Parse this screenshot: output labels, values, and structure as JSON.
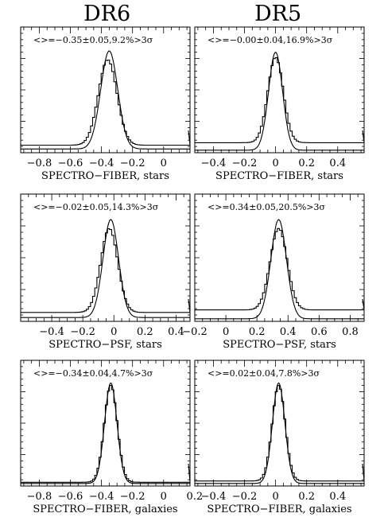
{
  "column_titles": [
    "DR6",
    "DR5"
  ],
  "chart_data": [
    {
      "type": "line",
      "panel": "DR6 top",
      "annotation": "<>=−0.35±0.05,9.2%>3σ",
      "xlabel": "SPECTRO−FIBER, stars",
      "xlim": [
        -0.92,
        0.17
      ],
      "ticks": [
        -0.8,
        -0.6,
        -0.4,
        -0.2,
        0
      ],
      "tick_labels": [
        "−0.8",
        "−0.6",
        "−0.4",
        "−0.2",
        "0"
      ],
      "series": [
        {
          "style": "smooth",
          "center": -0.35,
          "sigma": 0.055,
          "peak": 0.81,
          "tail": 0.03
        },
        {
          "style": "histogram",
          "center": -0.36,
          "sigma": 0.06,
          "peak": 0.74,
          "tail": 0.06
        }
      ]
    },
    {
      "type": "line",
      "panel": "DR5 top",
      "annotation": "<>=−0.00±0.04,16.9%>3σ",
      "xlabel": "SPECTRO−FIBER, stars",
      "xlim": [
        -0.52,
        0.57
      ],
      "ticks": [
        -0.4,
        -0.2,
        0,
        0.2,
        0.4
      ],
      "tick_labels": [
        "−0.4",
        "−0.2",
        "0",
        "0.2",
        "0.4"
      ],
      "series": [
        {
          "style": "smooth",
          "center": 0.0,
          "sigma": 0.045,
          "peak": 0.8,
          "tail": 0.02
        },
        {
          "style": "histogram",
          "center": 0.0,
          "sigma": 0.05,
          "peak": 0.76,
          "tail": 0.08
        }
      ]
    },
    {
      "type": "line",
      "panel": "DR6 middle",
      "annotation": "<>=−0.02±0.05,14.3%>3σ",
      "xlabel": "SPECTRO−PSF, stars",
      "xlim": [
        -0.6,
        0.49
      ],
      "ticks": [
        -0.4,
        -0.2,
        0,
        0.2,
        0.4
      ],
      "tick_labels": [
        "−0.4",
        "−0.2",
        "0",
        "0.2",
        "0.4"
      ],
      "series": [
        {
          "style": "smooth",
          "center": -0.02,
          "sigma": 0.05,
          "peak": 0.8,
          "tail": 0.03
        },
        {
          "style": "histogram",
          "center": -0.03,
          "sigma": 0.055,
          "peak": 0.73,
          "tail": 0.07
        }
      ]
    },
    {
      "type": "line",
      "panel": "DR5 middle",
      "annotation": "<>=0.34±0.05,20.5%>3σ",
      "xlabel": "SPECTRO−PSF, stars",
      "xlim": [
        -0.2,
        0.89
      ],
      "ticks": [
        -0.2,
        0,
        0.2,
        0.4,
        0.6,
        0.8
      ],
      "tick_labels": [
        "−0.2",
        "0",
        "0.2",
        "0.4",
        "0.6",
        "0.8"
      ],
      "series": [
        {
          "style": "smooth",
          "center": 0.34,
          "sigma": 0.05,
          "peak": 0.8,
          "tail": 0.02
        },
        {
          "style": "histogram",
          "center": 0.34,
          "sigma": 0.055,
          "peak": 0.73,
          "tail": 0.09
        }
      ]
    },
    {
      "type": "line",
      "panel": "DR6 bottom",
      "annotation": "<>=−0.34±0.04,4.7%>3σ",
      "xlabel": "SPECTRO−FIBER, galaxies",
      "xlim": [
        -0.92,
        0.17
      ],
      "ticks": [
        -0.8,
        -0.6,
        -0.4,
        -0.2,
        0,
        0.2
      ],
      "tick_labels": [
        "−0.8",
        "−0.6",
        "−0.4",
        "−0.2",
        "0",
        "0.2"
      ],
      "series": [
        {
          "style": "smooth",
          "center": -0.34,
          "sigma": 0.04,
          "peak": 0.82,
          "tail": 0.02
        },
        {
          "style": "histogram",
          "center": -0.34,
          "sigma": 0.042,
          "peak": 0.8,
          "tail": 0.03
        }
      ]
    },
    {
      "type": "line",
      "panel": "DR5 bottom",
      "annotation": "<>=0.02±0.04,7.8%>3σ",
      "xlabel": "SPECTRO−FIBER, galaxies",
      "xlim": [
        -0.52,
        0.57
      ],
      "ticks": [
        -0.4,
        -0.2,
        0,
        0.2,
        0.4
      ],
      "tick_labels": [
        "−0.4",
        "−0.2",
        "0",
        "0.2",
        "0.4"
      ],
      "series": [
        {
          "style": "smooth",
          "center": 0.02,
          "sigma": 0.04,
          "peak": 0.82,
          "tail": 0.02
        },
        {
          "style": "histogram",
          "center": 0.02,
          "sigma": 0.042,
          "peak": 0.8,
          "tail": 0.04
        }
      ]
    }
  ]
}
